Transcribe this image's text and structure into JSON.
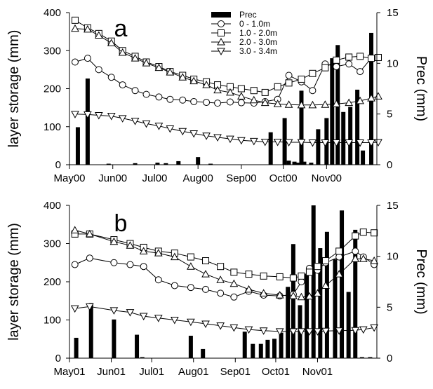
{
  "chart_data": [
    {
      "type": "line",
      "panel_label": "a",
      "ylabel": "layer storage (mm)",
      "y2label": "Prec (mm)",
      "ylim": [
        0,
        400
      ],
      "y2lim": [
        0,
        15
      ],
      "yticks": [
        0,
        100,
        200,
        300,
        400
      ],
      "y2ticks": [
        0,
        5,
        10,
        15
      ],
      "xlim_days": [
        0,
        220
      ],
      "xticks": [
        {
          "day": 0,
          "label": "May00"
        },
        {
          "day": 31,
          "label": "Jun00"
        },
        {
          "day": 61,
          "label": "Jul00"
        },
        {
          "day": 92,
          "label": "Aug00"
        },
        {
          "day": 123,
          "label": "Sep00"
        },
        {
          "day": 153,
          "label": "Oct00"
        },
        {
          "day": 184,
          "label": "Nov00"
        }
      ],
      "legend": {
        "position": "top-center",
        "entries": [
          "Prec",
          "0 - 1.0m",
          "1.0 - 2.0m",
          "2.0 - 3.0m",
          "3.0 - 3.4m"
        ]
      },
      "series": [
        {
          "name": "0 - 1.0m",
          "marker": "circle",
          "days": [
            4,
            13,
            21,
            30,
            38,
            47,
            55,
            64,
            72,
            81,
            89,
            98,
            106,
            115,
            123,
            132,
            140,
            149,
            157,
            166,
            174,
            183,
            191,
            200,
            208,
            216,
            221
          ],
          "values": [
            270,
            280,
            250,
            230,
            210,
            195,
            185,
            178,
            172,
            170,
            166,
            164,
            162,
            165,
            163,
            162,
            166,
            172,
            235,
            218,
            195,
            265,
            258,
            265,
            245,
            280,
            282
          ]
        },
        {
          "name": "1.0 - 2.0m",
          "marker": "square",
          "days": [
            4,
            13,
            21,
            30,
            38,
            47,
            55,
            64,
            72,
            81,
            89,
            98,
            106,
            115,
            123,
            132,
            140,
            149,
            157,
            166,
            174,
            183,
            191,
            200,
            208,
            216,
            221
          ],
          "values": [
            380,
            360,
            345,
            325,
            300,
            285,
            270,
            258,
            245,
            235,
            225,
            218,
            210,
            205,
            200,
            195,
            190,
            205,
            215,
            225,
            240,
            255,
            275,
            283,
            285,
            280,
            282
          ]
        },
        {
          "name": "2.0 - 3.0m",
          "marker": "triangle-up",
          "days": [
            4,
            13,
            21,
            30,
            38,
            47,
            55,
            64,
            72,
            81,
            89,
            98,
            106,
            115,
            123,
            132,
            140,
            149,
            157,
            166,
            174,
            183,
            191,
            200,
            208,
            216,
            221
          ],
          "values": [
            358,
            356,
            340,
            320,
            295,
            280,
            267,
            255,
            243,
            230,
            220,
            210,
            196,
            190,
            180,
            170,
            163,
            160,
            158,
            157,
            157,
            158,
            160,
            163,
            168,
            175,
            180
          ]
        },
        {
          "name": "3.0 - 3.4m",
          "marker": "triangle-down",
          "days": [
            4,
            13,
            21,
            30,
            38,
            47,
            55,
            64,
            72,
            81,
            89,
            98,
            106,
            115,
            123,
            132,
            140,
            149,
            157,
            166,
            174,
            183,
            191,
            200,
            208,
            216,
            221
          ],
          "values": [
            133,
            132,
            130,
            128,
            122,
            115,
            108,
            102,
            95,
            88,
            82,
            76,
            72,
            68,
            64,
            62,
            60,
            60,
            59,
            59,
            58,
            58,
            58,
            58,
            58,
            58,
            59
          ]
        }
      ],
      "precip_bars": {
        "name": "Prec",
        "days": [
          6,
          13,
          28,
          47,
          63,
          69,
          78,
          92,
          101,
          144,
          154,
          157,
          161,
          163,
          166,
          168,
          173,
          178,
          184,
          188,
          192,
          196,
          201,
          206,
          210,
          216
        ],
        "values": [
          3.7,
          8.5,
          0.1,
          0.15,
          0.2,
          0.15,
          0.35,
          0.75,
          0.1,
          3.2,
          4.6,
          0.4,
          0.3,
          0.2,
          7.3,
          0.3,
          0.2,
          3.5,
          4.6,
          10.5,
          11.8,
          5.2,
          5.7,
          7.4,
          1.4,
          13.0
        ]
      }
    },
    {
      "type": "line",
      "panel_label": "b",
      "ylabel": "layer storage (mm)",
      "y2label": "Prec (mm)",
      "ylim": [
        0,
        400
      ],
      "y2lim": [
        0,
        15
      ],
      "yticks": [
        0,
        100,
        200,
        300,
        400
      ],
      "y2ticks": [
        0,
        5,
        10,
        15
      ],
      "xlim_days": [
        0,
        228
      ],
      "xticks": [
        {
          "day": 0,
          "label": "May01"
        },
        {
          "day": 31,
          "label": "Jun01"
        },
        {
          "day": 61,
          "label": "Jul01"
        },
        {
          "day": 92,
          "label": "Aug01"
        },
        {
          "day": 123,
          "label": "Sep01"
        },
        {
          "day": 153,
          "label": "Oct01"
        },
        {
          "day": 184,
          "label": "Nov01"
        }
      ],
      "series": [
        {
          "name": "0 - 1.0m",
          "marker": "circle",
          "days": [
            4,
            15,
            33,
            45,
            55,
            66,
            78,
            90,
            101,
            112,
            122,
            133,
            144,
            156,
            166,
            172,
            178,
            184,
            190,
            200,
            212,
            218,
            226
          ],
          "values": [
            245,
            262,
            250,
            245,
            240,
            205,
            190,
            185,
            180,
            170,
            160,
            175,
            165,
            163,
            167,
            200,
            235,
            230,
            250,
            265,
            280,
            265,
            245
          ]
        },
        {
          "name": "1.0 - 2.0m",
          "marker": "square",
          "days": [
            4,
            15,
            33,
            45,
            55,
            66,
            78,
            90,
            101,
            112,
            122,
            133,
            144,
            156,
            166,
            172,
            178,
            184,
            190,
            200,
            212,
            218,
            226
          ],
          "values": [
            325,
            325,
            310,
            300,
            290,
            280,
            275,
            265,
            255,
            240,
            225,
            220,
            215,
            213,
            210,
            215,
            225,
            240,
            255,
            280,
            320,
            330,
            328
          ]
        },
        {
          "name": "2.0 - 3.0m",
          "marker": "triangle-up",
          "days": [
            4,
            15,
            33,
            45,
            55,
            66,
            78,
            90,
            101,
            112,
            122,
            133,
            144,
            156,
            166,
            172,
            178,
            184,
            190,
            200,
            212,
            218,
            226
          ],
          "values": [
            335,
            325,
            305,
            295,
            280,
            275,
            265,
            240,
            220,
            205,
            195,
            180,
            170,
            165,
            163,
            160,
            162,
            170,
            190,
            220,
            260,
            260,
            255
          ]
        },
        {
          "name": "3.0 - 3.4m",
          "marker": "triangle-down",
          "days": [
            4,
            15,
            33,
            45,
            55,
            66,
            78,
            90,
            101,
            112,
            122,
            133,
            144,
            156,
            166,
            172,
            178,
            184,
            190,
            200,
            212,
            218,
            226
          ],
          "values": [
            130,
            135,
            125,
            120,
            110,
            105,
            100,
            95,
            90,
            85,
            80,
            75,
            72,
            70,
            70,
            70,
            70,
            70,
            71,
            72,
            73,
            75,
            80
          ]
        }
      ],
      "precip_bars": {
        "name": "Prec",
        "days": [
          5,
          16,
          33,
          50,
          54,
          90,
          99,
          130,
          136,
          142,
          147,
          152,
          157,
          162,
          166,
          171,
          176,
          181,
          186,
          191,
          197,
          202,
          207,
          212,
          217,
          223
        ],
        "values": [
          2.0,
          5.4,
          3.8,
          2.3,
          0.1,
          2.2,
          0.9,
          2.6,
          1.4,
          1.4,
          1.8,
          1.9,
          2.5,
          7.0,
          11.2,
          5.2,
          8.2,
          15.0,
          10.8,
          12.4,
          9.7,
          14.5,
          6.5,
          12.6,
          0.1,
          0.1
        ]
      }
    }
  ]
}
